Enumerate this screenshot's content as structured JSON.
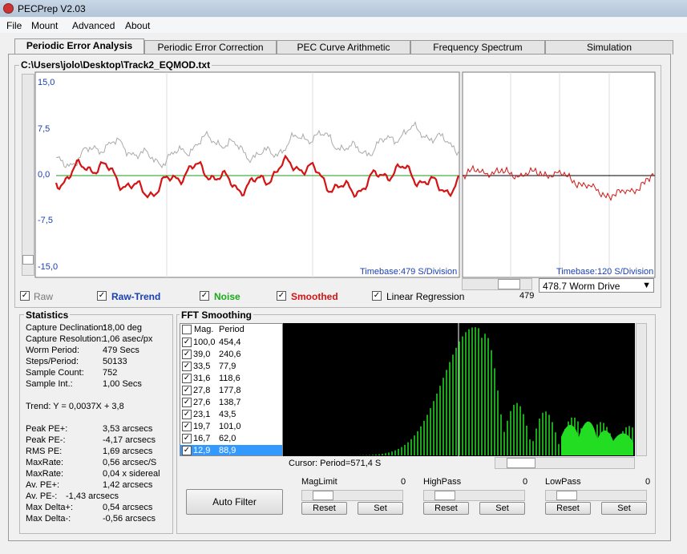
{
  "window": {
    "title": "PECPrep V2.03"
  },
  "menu": [
    "File",
    "Mount",
    "Advanced",
    "About"
  ],
  "tabs": [
    "Periodic Error Analysis",
    "Periodic Error Correction",
    "PEC Curve Arithmetic",
    "Frequency Spectrum",
    "Simulation"
  ],
  "file_path": "C:\\Users\\jolo\\Desktop\\Track2_EQMOD.txt",
  "plot": {
    "yticks": [
      "15,0",
      "7,5",
      "0,0",
      "-7,5",
      "-15,0"
    ],
    "timebase_main": "Timebase:479 S/Division",
    "timebase_worm": "Timebase:120 S/Division",
    "scroll_value": "479",
    "worm_drive": "478.7 Worm Drive"
  },
  "checkboxes": [
    "Raw",
    "Raw-Trend",
    "Noise",
    "Smoothed",
    "Linear Regression"
  ],
  "statistics": {
    "title": "Statistics",
    "rows": [
      [
        "Capture Declination:",
        "18,00 deg"
      ],
      [
        "Capture Resolution:",
        "1,06 asec/px"
      ],
      [
        "Worm Period:",
        "479 Secs"
      ],
      [
        "Steps/Period:",
        "50133"
      ],
      [
        "Sample Count:",
        "752"
      ],
      [
        "Sample Int.:",
        "1,00 Secs"
      ]
    ],
    "trend": "Trend: Y = 0,0037X + 3,8",
    "rows2": [
      [
        "Peak PE+:",
        "3,53 arcsecs"
      ],
      [
        "Peak PE-:",
        "-4,17 arcsecs"
      ],
      [
        "RMS PE:",
        "1,69 arcsecs"
      ],
      [
        "MaxRate:",
        "0,56 arcsec/S"
      ],
      [
        "MaxRate:",
        "0,04 x sidereal"
      ],
      [
        "Av. PE+:",
        "1,42 arcsecs"
      ],
      [
        "Av. PE-:",
        "-1,43 arcsecs"
      ],
      [
        "Max Delta+:",
        "0,54 arcsecs"
      ],
      [
        "Max Delta-:",
        "-0,56 arcsecs"
      ]
    ]
  },
  "fft": {
    "title": "FFT Smoothing",
    "header": [
      "Mag.",
      "Period"
    ],
    "rows": [
      [
        "100,0",
        "454,4"
      ],
      [
        "39,0",
        "240,6"
      ],
      [
        "33,5",
        "77,9"
      ],
      [
        "31,6",
        "118,6"
      ],
      [
        "27,8",
        "177,8"
      ],
      [
        "27,6",
        "138,7"
      ],
      [
        "23,1",
        "43,5"
      ],
      [
        "19,7",
        "101,0"
      ],
      [
        "16,7",
        "62,0"
      ],
      [
        "12,9",
        "88,9"
      ]
    ],
    "cursor": "Cursor: Period=571,4 S",
    "auto_filter": "Auto Filter",
    "controls": [
      {
        "label": "MagLimit",
        "value": "0",
        "reset": "Reset",
        "set": "Set"
      },
      {
        "label": "HighPass",
        "value": "0",
        "reset": "Reset",
        "set": "Set"
      },
      {
        "label": "LowPass",
        "value": "0",
        "reset": "Reset",
        "set": "Set"
      }
    ]
  }
}
